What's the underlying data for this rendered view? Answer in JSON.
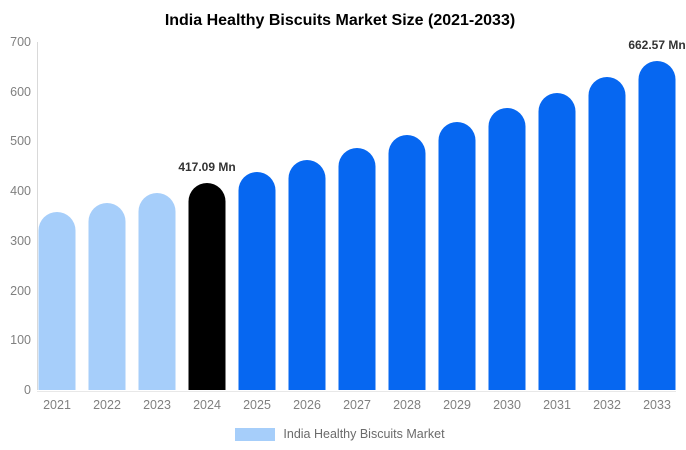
{
  "chart_data": {
    "type": "bar",
    "title": "India Healthy Biscuits Market Size (2021-2033)",
    "categories": [
      "2021",
      "2022",
      "2023",
      "2024",
      "2025",
      "2026",
      "2027",
      "2028",
      "2029",
      "2030",
      "2031",
      "2032",
      "2033"
    ],
    "values": [
      357.46,
      376.32,
      396.18,
      417.09,
      439.1,
      462.27,
      486.67,
      512.35,
      539.39,
      567.86,
      597.83,
      629.38,
      662.57
    ],
    "point_labels": [
      "",
      "",
      "",
      "417.09 Mn",
      "",
      "",
      "",
      "",
      "",
      "",
      "",
      "",
      "662.57 Mn"
    ],
    "bar_colors": [
      "#A6CEFA",
      "#A6CEFA",
      "#A6CEFA",
      "#000000",
      "#0667F1",
      "#0667F1",
      "#0667F1",
      "#0667F1",
      "#0667F1",
      "#0667F1",
      "#0667F1",
      "#0667F1",
      "#0667F1"
    ],
    "ylim": [
      0,
      700
    ],
    "yticks": [
      0,
      100,
      200,
      300,
      400,
      500,
      600,
      700
    ],
    "xlabel": "",
    "ylabel": "",
    "grid": false,
    "legend": {
      "position": "bottom",
      "items": [
        {
          "label": "India Healthy Biscuits Market",
          "color": "#A6CEFA"
        }
      ]
    },
    "colors": {
      "title": "#000000",
      "tick_label": "#808080",
      "value_label": "#333333",
      "legend_label": "#6b6b6b",
      "y_axis_line": "#d9d9d9",
      "x_axis_line": "#e8e8e8",
      "background": "#ffffff"
    }
  }
}
